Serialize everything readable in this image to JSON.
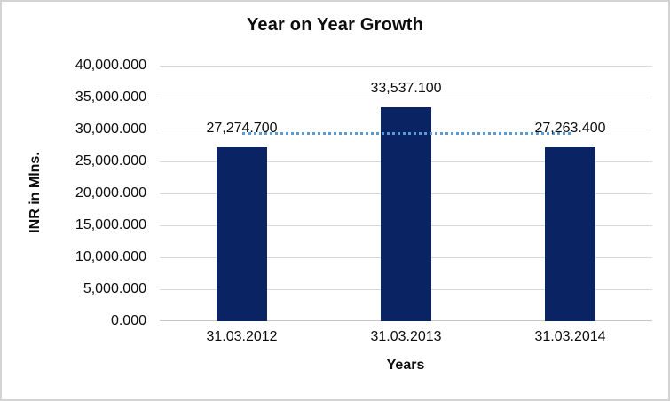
{
  "window": {
    "background_color": "#ffffff",
    "frame_border_color": "#d3d3d3"
  },
  "chart_data": {
    "type": "bar",
    "title": "Year on Year Growth",
    "xlabel": "Years",
    "ylabel": "INR in Mlns.",
    "categories": [
      "31.03.2012",
      "31.03.2013",
      "31.03.2014"
    ],
    "values": [
      27274.7,
      33537.1,
      27263.4
    ],
    "value_labels": [
      "27,274.700",
      "33,537.100",
      "27,263.400"
    ],
    "ylim": [
      0,
      40000
    ],
    "ytick_step": 5000,
    "ytick_labels": [
      "0.000",
      "5,000.000",
      "10,000.000",
      "15,000.000",
      "20,000.000",
      "25,000.000",
      "30,000.000",
      "35,000.000",
      "40,000.000"
    ],
    "grid": true,
    "legend": false,
    "bar_color": "#0a2363",
    "gridline_color": "#d9d9d9",
    "axis_line_color": "#c6c6c6",
    "label_color": "#0d0d0d",
    "trendline": {
      "kind": "linear",
      "line_style": "dotted",
      "color": "#5b9bd5",
      "y_value": 29358.4
    }
  }
}
